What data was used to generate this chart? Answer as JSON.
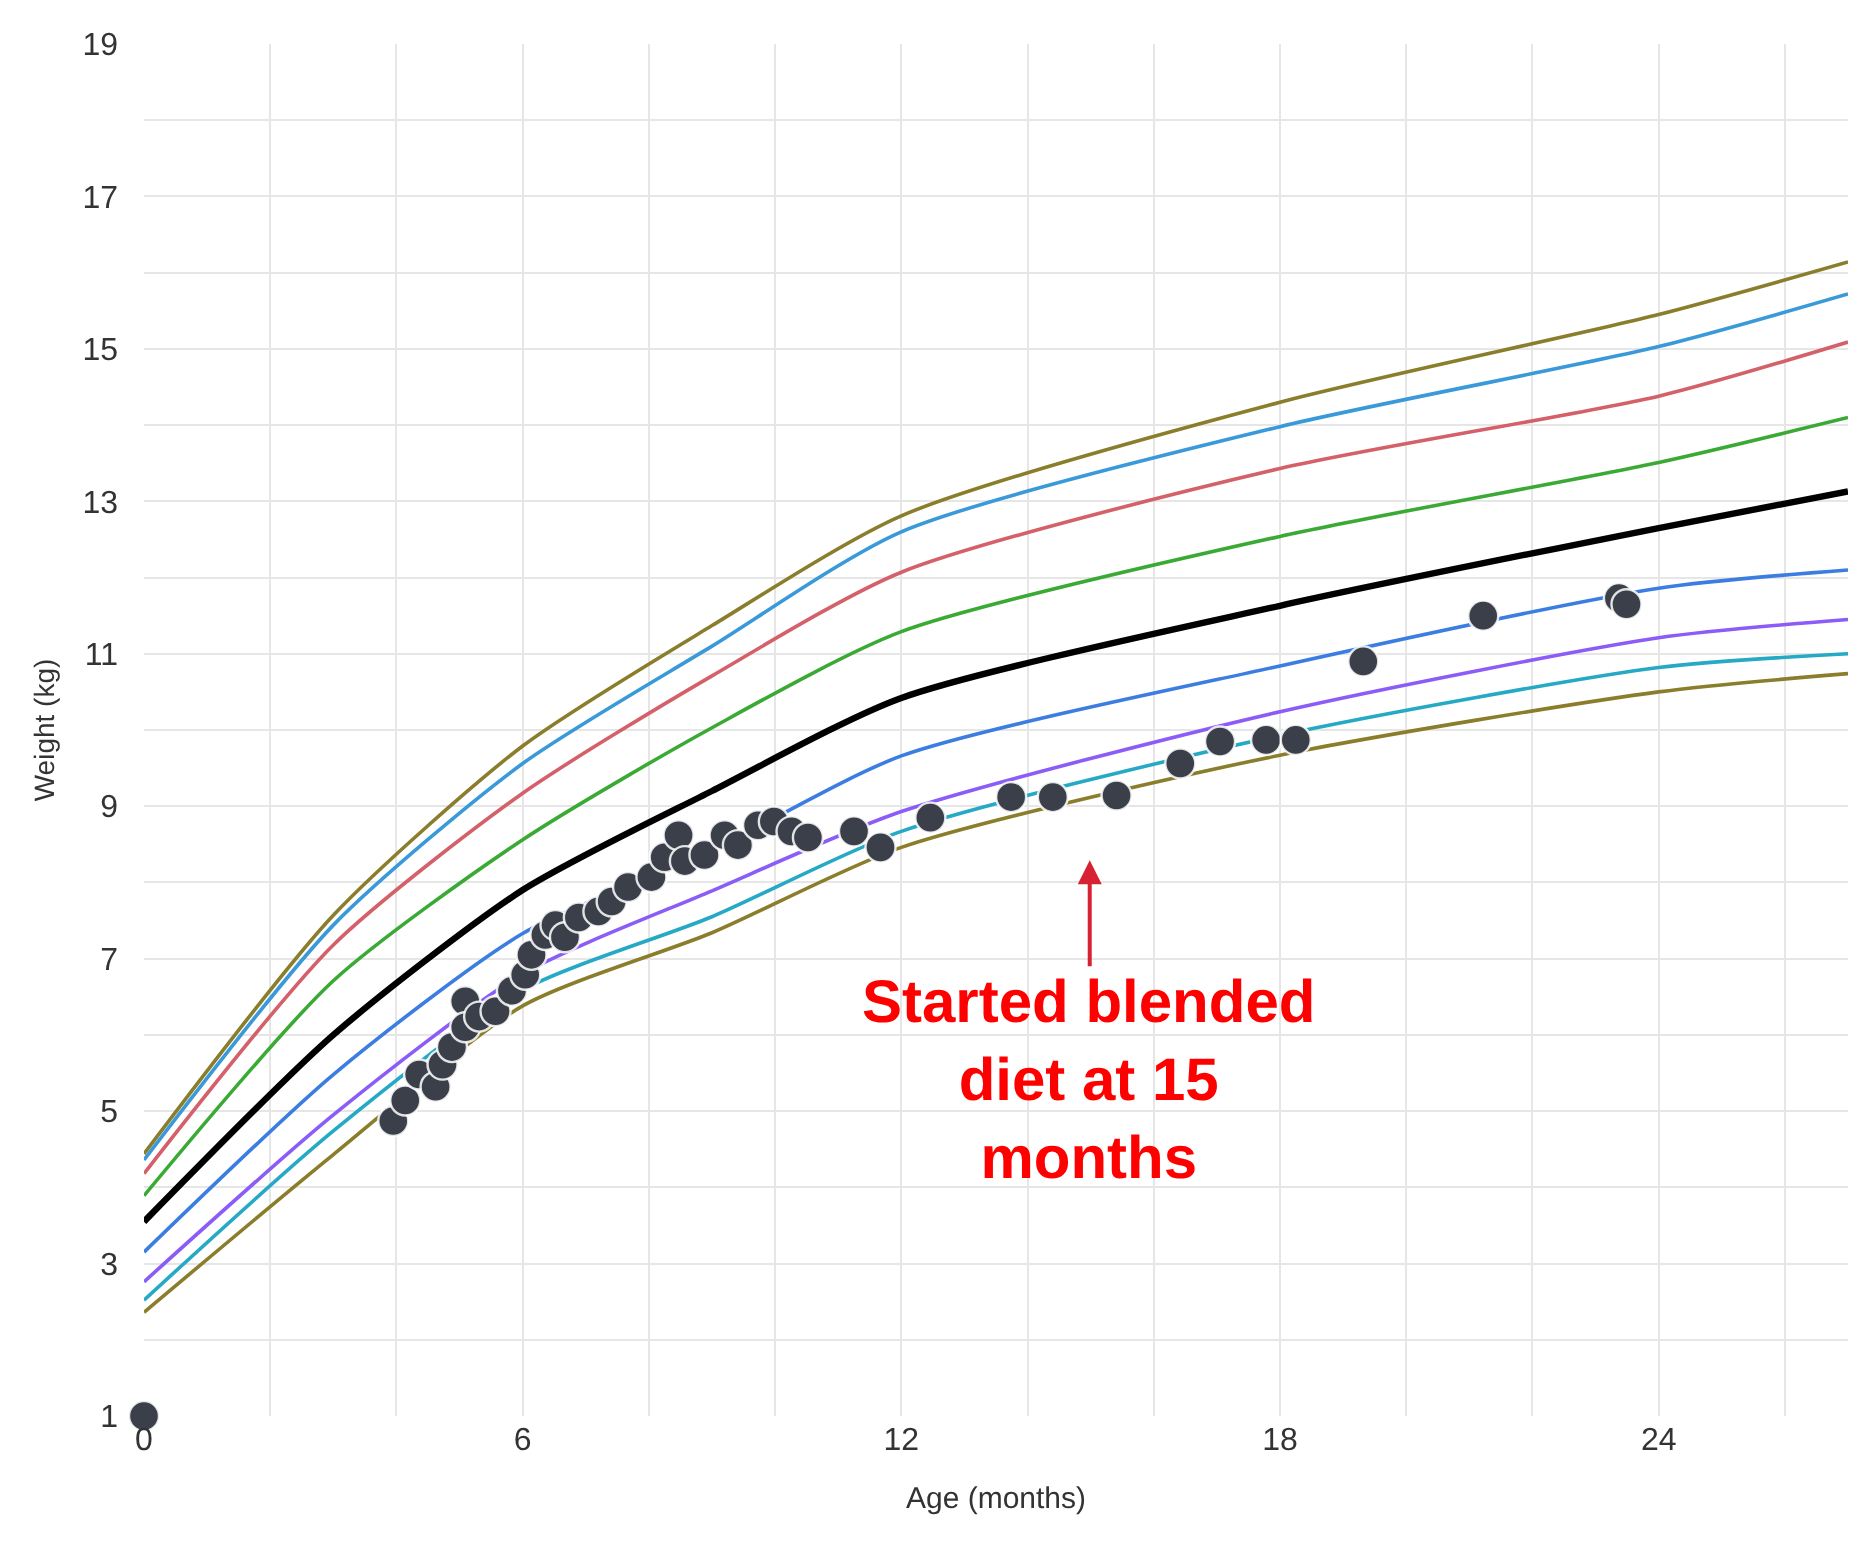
{
  "chart_data": {
    "type": "line",
    "xlabel": "Age (months)",
    "ylabel": "Weight (kg)",
    "xlim": [
      0,
      27
    ],
    "ylim": [
      1,
      19
    ],
    "xticks": [
      0,
      {
        "value": 2,
        "label": null
      },
      {
        "value": 4,
        "label": null
      },
      6,
      {
        "value": 8,
        "label": null
      },
      {
        "value": 10,
        "label": null
      },
      12,
      {
        "value": 14,
        "label": null
      },
      {
        "value": 16,
        "label": null
      },
      18,
      {
        "value": 20,
        "label": null
      },
      {
        "value": 22,
        "label": null
      },
      24,
      {
        "value": 26,
        "label": null
      }
    ],
    "yticks": [
      1,
      {
        "value": 2,
        "label": null
      },
      3,
      {
        "value": 4,
        "label": null
      },
      5,
      {
        "value": 6,
        "label": null
      },
      7,
      {
        "value": 8,
        "label": null
      },
      9,
      {
        "value": 10,
        "label": null
      },
      11,
      {
        "value": 12,
        "label": null
      },
      13,
      {
        "value": 14,
        "label": null
      },
      15,
      {
        "value": 16,
        "label": null
      },
      17,
      {
        "value": 18,
        "label": null
      },
      19
    ],
    "grid": true,
    "marker": "none",
    "line_style": "solid",
    "x": [
      0,
      3,
      6,
      9,
      12,
      18,
      24,
      27
    ],
    "series": [
      {
        "color": "#8a7d2b",
        "values": [
          4.44,
          7.57,
          9.79,
          11.37,
          12.81,
          14.3,
          15.45,
          16.14
        ]
      },
      {
        "color": "#3a9ad9",
        "values": [
          4.36,
          7.44,
          9.56,
          11.1,
          12.6,
          13.98,
          15.03,
          15.72
        ]
      },
      {
        "color": "#d4606a",
        "values": [
          4.18,
          7.18,
          9.17,
          10.71,
          12.07,
          13.43,
          14.38,
          15.09
        ]
      },
      {
        "color": "#3aaa35",
        "values": [
          3.89,
          6.71,
          8.56,
          10.03,
          11.29,
          12.54,
          13.51,
          14.1
        ]
      },
      {
        "color": "#000000",
        "values": [
          3.55,
          6.0,
          7.9,
          9.2,
          10.42,
          11.63,
          12.65,
          13.13
        ]
      },
      {
        "color": "#3b7de0",
        "values": [
          3.15,
          5.48,
          7.33,
          8.42,
          9.66,
          10.84,
          11.86,
          12.1
        ]
      },
      {
        "color": "#8b5cf6",
        "values": [
          2.76,
          4.95,
          6.8,
          7.89,
          8.93,
          10.24,
          11.21,
          11.45
        ]
      },
      {
        "color": "#25a9c4",
        "values": [
          2.52,
          4.74,
          6.59,
          7.55,
          8.67,
          9.93,
          10.82,
          11.0
        ]
      },
      {
        "color": "#8a7d2b",
        "values": [
          2.36,
          4.43,
          6.38,
          7.34,
          8.46,
          9.67,
          10.5,
          10.74
        ]
      },
      {
        "type": "scatter",
        "marker": "circle",
        "color": "#3a3f4a",
        "x": [
          0,
          3.95,
          4.14,
          4.36,
          4.62,
          4.73,
          4.88,
          5.09,
          5.09,
          5.31,
          5.57,
          5.83,
          6.04,
          6.14,
          6.36,
          6.52,
          6.67,
          6.89,
          7.2,
          7.41,
          7.67,
          8.04,
          8.25,
          8.47,
          8.57,
          8.88,
          9.2,
          9.41,
          9.73,
          9.98,
          10.26,
          10.52,
          11.25,
          11.67,
          12.46,
          13.74,
          14.4,
          15.41,
          16.42,
          17.05,
          17.78,
          18.25,
          19.32,
          21.22,
          23.37,
          23.49
        ],
        "values": [
          1,
          4.87,
          5.14,
          5.48,
          5.32,
          5.61,
          5.84,
          6.44,
          6.1,
          6.24,
          6.31,
          6.58,
          6.79,
          7.05,
          7.31,
          7.44,
          7.28,
          7.54,
          7.62,
          7.75,
          7.94,
          8.07,
          8.33,
          8.62,
          8.28,
          8.36,
          8.62,
          8.49,
          8.75,
          8.8,
          8.67,
          8.59,
          8.67,
          8.46,
          8.85,
          9.12,
          9.12,
          9.14,
          9.56,
          9.85,
          9.87,
          9.87,
          10.9,
          11.5,
          11.73,
          11.65
        ]
      }
    ],
    "annotations": [
      "Started blended diet at 15 months"
    ]
  }
}
